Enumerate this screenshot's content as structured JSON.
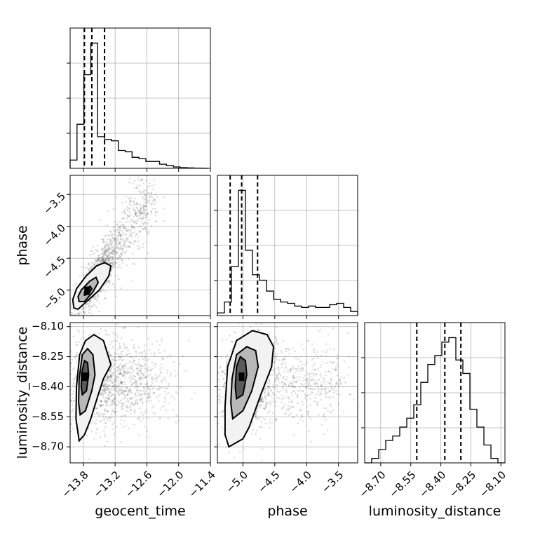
{
  "chart_data": {
    "type": "corner",
    "parameters": [
      "geocent_time",
      "phase",
      "luminosity_distance"
    ],
    "axis_labels": {
      "geocent_time": "geocent_time",
      "phase": "phase",
      "luminosity_distance": "luminosity_distance"
    },
    "grid": true,
    "ranges": {
      "geocent_time": [
        -14.05,
        -11.4
      ],
      "phase": [
        -5.4,
        -3.2
      ],
      "luminosity_distance": [
        -8.78,
        -8.08
      ]
    },
    "ticks": {
      "geocent_time": {
        "values": [
          -13.8,
          -13.2,
          -12.6,
          -12.0,
          -11.4
        ],
        "labels": [
          "−13.8",
          "−13.2",
          "−12.6",
          "−12.0",
          "−11.4"
        ]
      },
      "phase": {
        "values": [
          -5.0,
          -4.5,
          -4.0,
          -3.5
        ],
        "labels": [
          "−5.0",
          "−4.5",
          "−4.0",
          "−3.5"
        ]
      },
      "luminosity_distance": {
        "values": [
          -8.7,
          -8.55,
          -8.4,
          -8.25,
          -8.1
        ],
        "labels": [
          "−8.70",
          "−8.55",
          "−8.40",
          "−8.25",
          "−8.10"
        ]
      }
    },
    "quantiles": {
      "geocent_time": [
        -13.78,
        -13.64,
        -13.4
      ],
      "phase": [
        -5.2,
        -5.02,
        -4.77
      ],
      "luminosity_distance": [
        -8.52,
        -8.38,
        -8.3
      ]
    },
    "histograms": {
      "geocent_time": {
        "edges": [
          -14.05,
          -13.92,
          -13.79,
          -13.66,
          -13.53,
          -13.4,
          -13.27,
          -13.14,
          -13.01,
          -12.88,
          -12.75,
          -12.62,
          -12.49,
          -12.36,
          -12.23,
          -12.1,
          -11.97,
          -11.84,
          -11.71,
          -11.58,
          -11.45
        ],
        "counts": [
          0.06,
          0.32,
          0.68,
          0.91,
          0.23,
          0.21,
          0.2,
          0.13,
          0.12,
          0.08,
          0.07,
          0.05,
          0.05,
          0.03,
          0.02,
          0.01,
          0.005,
          0.003,
          0.001,
          0.0
        ]
      },
      "phase": {
        "edges": [
          -5.4,
          -5.29,
          -5.18,
          -5.07,
          -4.96,
          -4.85,
          -4.74,
          -4.63,
          -4.52,
          -4.41,
          -4.3,
          -4.19,
          -4.08,
          -3.97,
          -3.86,
          -3.75,
          -3.64,
          -3.53,
          -3.42,
          -3.31,
          -3.2
        ],
        "counts": [
          0.01,
          0.05,
          0.18,
          0.46,
          0.24,
          0.15,
          0.13,
          0.09,
          0.06,
          0.05,
          0.045,
          0.035,
          0.03,
          0.035,
          0.03,
          0.03,
          0.04,
          0.045,
          0.03,
          0.015
        ]
      },
      "luminosity_distance": {
        "edges": [
          -8.78,
          -8.745,
          -8.71,
          -8.675,
          -8.64,
          -8.605,
          -8.57,
          -8.535,
          -8.5,
          -8.465,
          -8.43,
          -8.395,
          -8.36,
          -8.325,
          -8.29,
          -8.255,
          -8.22,
          -8.185,
          -8.15,
          -8.115,
          -8.08
        ],
        "counts": [
          0.0,
          0.005,
          0.015,
          0.025,
          0.03,
          0.04,
          0.05,
          0.065,
          0.09,
          0.11,
          0.12,
          0.135,
          0.14,
          0.115,
          0.1,
          0.06,
          0.04,
          0.02,
          0.005,
          0.0
        ]
      }
    },
    "pairs": [
      {
        "x": "geocent_time",
        "y": "phase",
        "levels": [
          [
            [
              -13.98,
              -5.28
            ],
            [
              -13.9,
              -5.3
            ],
            [
              -13.7,
              -5.15
            ],
            [
              -13.5,
              -5.0
            ],
            [
              -13.32,
              -4.78
            ],
            [
              -13.28,
              -4.62
            ],
            [
              -13.4,
              -4.57
            ],
            [
              -13.55,
              -4.62
            ],
            [
              -13.75,
              -4.78
            ],
            [
              -13.93,
              -4.98
            ],
            [
              -14.0,
              -5.15
            ],
            [
              -13.98,
              -5.28
            ]
          ],
          [
            [
              -13.88,
              -5.18
            ],
            [
              -13.78,
              -5.18
            ],
            [
              -13.62,
              -5.03
            ],
            [
              -13.52,
              -4.88
            ],
            [
              -13.56,
              -4.8
            ],
            [
              -13.68,
              -4.86
            ],
            [
              -13.84,
              -5.0
            ],
            [
              -13.9,
              -5.1
            ],
            [
              -13.88,
              -5.18
            ]
          ],
          [
            [
              -13.78,
              -5.08
            ],
            [
              -13.7,
              -5.06
            ],
            [
              -13.64,
              -4.98
            ],
            [
              -13.67,
              -4.94
            ],
            [
              -13.74,
              -4.98
            ],
            [
              -13.78,
              -5.04
            ],
            [
              -13.78,
              -5.08
            ]
          ]
        ],
        "peak": [
          -13.73,
          -5.01
        ],
        "scatter": {
          "points": 1400,
          "center": [
            -13.55,
            -4.8
          ],
          "spread_x": 0.22,
          "spread_y": 0.3,
          "correlation": 0.82,
          "tail_to": [
            -12.55,
            -3.55
          ],
          "tail_fraction": 0.35
        }
      },
      {
        "x": "geocent_time",
        "y": "luminosity_distance",
        "levels": [
          [
            [
              -13.88,
              -8.67
            ],
            [
              -13.78,
              -8.64
            ],
            [
              -13.66,
              -8.56
            ],
            [
              -13.52,
              -8.44
            ],
            [
              -13.42,
              -8.36
            ],
            [
              -13.28,
              -8.29
            ],
            [
              -13.42,
              -8.17
            ],
            [
              -13.6,
              -8.14
            ],
            [
              -13.76,
              -8.17
            ],
            [
              -13.87,
              -8.24
            ],
            [
              -13.93,
              -8.4
            ],
            [
              -13.94,
              -8.56
            ],
            [
              -13.88,
              -8.67
            ]
          ],
          [
            [
              -13.86,
              -8.54
            ],
            [
              -13.76,
              -8.52
            ],
            [
              -13.64,
              -8.42
            ],
            [
              -13.58,
              -8.34
            ],
            [
              -13.62,
              -8.24
            ],
            [
              -13.72,
              -8.21
            ],
            [
              -13.82,
              -8.24
            ],
            [
              -13.88,
              -8.36
            ],
            [
              -13.89,
              -8.48
            ],
            [
              -13.86,
              -8.54
            ]
          ],
          [
            [
              -13.82,
              -8.44
            ],
            [
              -13.74,
              -8.42
            ],
            [
              -13.7,
              -8.34
            ],
            [
              -13.72,
              -8.28
            ],
            [
              -13.78,
              -8.27
            ],
            [
              -13.83,
              -8.33
            ],
            [
              -13.84,
              -8.4
            ],
            [
              -13.82,
              -8.44
            ]
          ]
        ],
        "peak": [
          -13.77,
          -8.35
        ],
        "scatter": {
          "points": 1400,
          "center": [
            -13.55,
            -8.38
          ],
          "spread_x": 0.4,
          "spread_y": 0.12,
          "correlation": 0.1,
          "tail_to": [
            -12.3,
            -8.38
          ],
          "tail_fraction": 0.35
        }
      },
      {
        "x": "phase",
        "y": "luminosity_distance",
        "levels": [
          [
            [
              -5.22,
              -8.7
            ],
            [
              -5.0,
              -8.66
            ],
            [
              -4.9,
              -8.6
            ],
            [
              -4.72,
              -8.44
            ],
            [
              -4.55,
              -8.3
            ],
            [
              -4.52,
              -8.2
            ],
            [
              -4.62,
              -8.14
            ],
            [
              -4.85,
              -8.12
            ],
            [
              -5.1,
              -8.17
            ],
            [
              -5.24,
              -8.3
            ],
            [
              -5.28,
              -8.5
            ],
            [
              -5.28,
              -8.64
            ],
            [
              -5.22,
              -8.7
            ]
          ],
          [
            [
              -5.16,
              -8.56
            ],
            [
              -5.0,
              -8.52
            ],
            [
              -4.86,
              -8.42
            ],
            [
              -4.76,
              -8.3
            ],
            [
              -4.8,
              -8.22
            ],
            [
              -4.94,
              -8.2
            ],
            [
              -5.1,
              -8.24
            ],
            [
              -5.17,
              -8.36
            ],
            [
              -5.19,
              -8.48
            ],
            [
              -5.16,
              -8.56
            ]
          ],
          [
            [
              -5.1,
              -8.46
            ],
            [
              -5.0,
              -8.44
            ],
            [
              -4.94,
              -8.34
            ],
            [
              -4.96,
              -8.27
            ],
            [
              -5.04,
              -8.25
            ],
            [
              -5.1,
              -8.3
            ],
            [
              -5.12,
              -8.4
            ],
            [
              -5.1,
              -8.46
            ]
          ]
        ],
        "peak": [
          -5.02,
          -8.35
        ],
        "scatter": {
          "points": 1400,
          "center": [
            -4.95,
            -8.38
          ],
          "spread_x": 0.25,
          "spread_y": 0.12,
          "correlation": 0.15,
          "tail_to": [
            -3.5,
            -8.38
          ],
          "tail_fraction": 0.35
        }
      }
    ]
  }
}
